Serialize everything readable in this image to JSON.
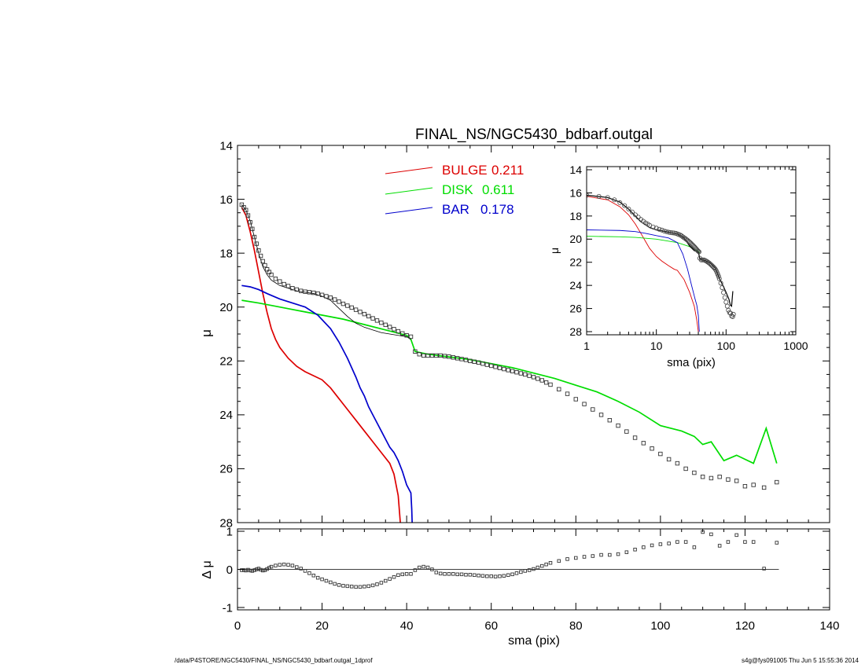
{
  "footer": {
    "left": "/data/P4STORE/NGC5430/FINAL_NS/NGC5430_bdbarf.outgal_1dprof",
    "right": "s4g@fys091005  Thu Jun  5 15:55:36 2014"
  },
  "chart_data": [
    {
      "id": "main",
      "type": "line",
      "title": "FINAL_NS/NGC5430_bdbarf.outgal",
      "ylabel": "μ",
      "xlim": [
        0,
        140
      ],
      "ylim": [
        28,
        14
      ],
      "y_inverted": true,
      "xticks": [
        0,
        20,
        40,
        60,
        80,
        100,
        120,
        140
      ],
      "yticks": [
        14,
        16,
        18,
        20,
        22,
        24,
        26,
        28
      ],
      "legend": {
        "placement": "top-center",
        "entries": [
          {
            "label": "BULGE",
            "value": "0.211",
            "color": "#dd0000"
          },
          {
            "label": "DISK",
            "value": "0.611",
            "color": "#00dd00"
          },
          {
            "label": "BAR",
            "value": "0.178",
            "color": "#0000cc"
          }
        ]
      },
      "series": [
        {
          "key": "bulge",
          "color": "#dd0000",
          "x": [
            1,
            2,
            3,
            4,
            5,
            6,
            7,
            8,
            9,
            10,
            12,
            14,
            16,
            18,
            20,
            22,
            24,
            26,
            28,
            30,
            32,
            34,
            36,
            37,
            38,
            38.5
          ],
          "y": [
            16.3,
            16.6,
            17.2,
            17.9,
            18.7,
            19.5,
            20.2,
            20.8,
            21.2,
            21.5,
            21.9,
            22.2,
            22.4,
            22.55,
            22.7,
            23.0,
            23.4,
            23.8,
            24.2,
            24.6,
            25.0,
            25.4,
            25.8,
            26.2,
            27.0,
            28.0
          ]
        },
        {
          "key": "disk",
          "color": "#00dd00",
          "x": [
            1,
            5,
            10,
            15,
            20,
            25,
            30,
            35,
            40,
            41,
            42,
            45,
            50,
            55,
            60,
            65,
            70,
            75,
            80,
            85,
            90,
            95,
            100,
            105,
            108,
            110,
            112,
            115,
            118,
            122,
            125,
            127.5
          ],
          "y": [
            19.75,
            19.85,
            20.0,
            20.15,
            20.3,
            20.45,
            20.65,
            20.85,
            21.05,
            21.2,
            21.65,
            21.75,
            21.85,
            21.95,
            22.1,
            22.25,
            22.45,
            22.65,
            22.9,
            23.15,
            23.5,
            23.9,
            24.4,
            24.6,
            24.8,
            25.1,
            25.0,
            25.7,
            25.5,
            25.8,
            24.5,
            25.8
          ]
        },
        {
          "key": "bar",
          "color": "#0000cc",
          "x": [
            1,
            3,
            5,
            7,
            10,
            13,
            16,
            19,
            22,
            24,
            26,
            28,
            29,
            30,
            31,
            32,
            33,
            34,
            35,
            36,
            37,
            38,
            39,
            40,
            41,
            41.2,
            41.3
          ],
          "y": [
            19.2,
            19.25,
            19.35,
            19.5,
            19.7,
            19.85,
            20.0,
            20.3,
            20.8,
            21.3,
            21.9,
            22.6,
            23.0,
            23.3,
            23.7,
            24.0,
            24.3,
            24.6,
            24.9,
            25.2,
            25.4,
            25.7,
            26.1,
            26.6,
            26.9,
            27.5,
            28.0
          ]
        },
        {
          "key": "model",
          "color": "#000000",
          "x": [
            1,
            2,
            3,
            4,
            5,
            6,
            7,
            8,
            9,
            10,
            12,
            14,
            16,
            18,
            20,
            22,
            24,
            26,
            28,
            30,
            32,
            34,
            36,
            38,
            40,
            41
          ],
          "y": [
            16.2,
            16.4,
            16.8,
            17.4,
            18.0,
            18.5,
            18.8,
            19.0,
            19.1,
            19.2,
            19.3,
            19.4,
            19.45,
            19.5,
            19.6,
            19.75,
            20.05,
            20.35,
            20.6,
            20.75,
            20.85,
            20.95,
            21.0,
            21.05,
            21.1,
            21.2
          ]
        }
      ],
      "observed": {
        "x": [
          1,
          1.5,
          2,
          2.5,
          3,
          3.5,
          4,
          4.5,
          5,
          5.5,
          6,
          6.5,
          7,
          7.5,
          8,
          9,
          10,
          11,
          12,
          13,
          14,
          15,
          16,
          17,
          18,
          19,
          20,
          21,
          22,
          23,
          24,
          25,
          26,
          27,
          28,
          29,
          30,
          31,
          32,
          33,
          34,
          35,
          36,
          37,
          38,
          39,
          40,
          41,
          42,
          43,
          44,
          45,
          46,
          47,
          48,
          49,
          50,
          51,
          52,
          53,
          54,
          55,
          56,
          57,
          58,
          59,
          60,
          61,
          62,
          63,
          64,
          65,
          66,
          67,
          68,
          69,
          70,
          71,
          72,
          73,
          74,
          76,
          78,
          80,
          82,
          84,
          86,
          88,
          90,
          92,
          94,
          96,
          98,
          100,
          102,
          104,
          106,
          108,
          110,
          112,
          114,
          116,
          118,
          120,
          122,
          124.5,
          127.5
        ],
        "y": [
          16.2,
          16.3,
          16.4,
          16.6,
          16.85,
          17.1,
          17.4,
          17.65,
          17.9,
          18.1,
          18.3,
          18.45,
          18.6,
          18.7,
          18.8,
          18.95,
          19.05,
          19.15,
          19.22,
          19.3,
          19.35,
          19.4,
          19.43,
          19.45,
          19.47,
          19.5,
          19.55,
          19.6,
          19.65,
          19.72,
          19.8,
          19.88,
          19.95,
          20.02,
          20.1,
          20.18,
          20.26,
          20.34,
          20.42,
          20.5,
          20.58,
          20.66,
          20.74,
          20.82,
          20.9,
          20.98,
          21.05,
          21.1,
          21.65,
          21.75,
          21.8,
          21.8,
          21.8,
          21.8,
          21.8,
          21.82,
          21.84,
          21.87,
          21.9,
          21.93,
          21.96,
          22.0,
          22.03,
          22.06,
          22.1,
          22.14,
          22.18,
          22.22,
          22.26,
          22.3,
          22.34,
          22.38,
          22.42,
          22.46,
          22.5,
          22.55,
          22.6,
          22.66,
          22.72,
          22.8,
          22.88,
          23.05,
          23.22,
          23.42,
          23.6,
          23.8,
          24.0,
          24.2,
          24.4,
          24.62,
          24.85,
          25.05,
          25.25,
          25.45,
          25.65,
          25.8,
          26.0,
          26.15,
          26.3,
          26.35,
          26.3,
          26.4,
          26.45,
          26.65,
          26.6,
          26.7,
          26.5
        ]
      }
    },
    {
      "id": "residual",
      "type": "scatter",
      "ylabel": "Δ μ",
      "xlabel": "sma (pix)",
      "xlim": [
        0,
        140
      ],
      "ylim": [
        -1,
        1
      ],
      "xticks": [
        0,
        20,
        40,
        60,
        80,
        100,
        120,
        140
      ],
      "yticks": [
        -1,
        0,
        1
      ],
      "zero_line_x": [
        0,
        128
      ],
      "x": [
        1,
        1.5,
        2,
        2.5,
        3,
        3.5,
        4,
        4.5,
        5,
        5.5,
        6,
        6.5,
        7,
        7.5,
        8,
        9,
        10,
        11,
        12,
        13,
        14,
        15,
        16,
        17,
        18,
        19,
        20,
        21,
        22,
        23,
        24,
        25,
        26,
        27,
        28,
        29,
        30,
        31,
        32,
        33,
        34,
        35,
        36,
        37,
        38,
        39,
        40,
        41,
        42,
        43,
        44,
        45,
        46,
        47,
        48,
        49,
        50,
        51,
        52,
        53,
        54,
        55,
        56,
        57,
        58,
        59,
        60,
        61,
        62,
        63,
        64,
        65,
        66,
        67,
        68,
        69,
        70,
        71,
        72,
        73,
        74,
        76,
        78,
        80,
        82,
        84,
        86,
        88,
        90,
        92,
        94,
        96,
        98,
        100,
        102,
        104,
        106,
        108,
        110,
        112,
        114,
        116,
        118,
        120,
        122,
        124.5,
        127.5
      ],
      "y": [
        -0.02,
        -0.02,
        -0.03,
        -0.01,
        -0.03,
        -0.04,
        -0.02,
        0.0,
        0.02,
        -0.01,
        -0.03,
        -0.02,
        0.01,
        0.04,
        0.07,
        0.1,
        0.12,
        0.13,
        0.12,
        0.1,
        0.06,
        0.02,
        -0.04,
        -0.1,
        -0.16,
        -0.22,
        -0.26,
        -0.3,
        -0.34,
        -0.38,
        -0.41,
        -0.43,
        -0.44,
        -0.45,
        -0.46,
        -0.46,
        -0.45,
        -0.44,
        -0.42,
        -0.39,
        -0.35,
        -0.3,
        -0.25,
        -0.2,
        -0.15,
        -0.13,
        -0.12,
        -0.12,
        -0.02,
        0.05,
        0.07,
        0.05,
        0.0,
        -0.08,
        -0.11,
        -0.12,
        -0.12,
        -0.12,
        -0.13,
        -0.13,
        -0.14,
        -0.14,
        -0.15,
        -0.16,
        -0.17,
        -0.18,
        -0.18,
        -0.19,
        -0.18,
        -0.17,
        -0.15,
        -0.13,
        -0.1,
        -0.07,
        -0.04,
        -0.02,
        0.01,
        0.05,
        0.09,
        0.13,
        0.17,
        0.22,
        0.27,
        0.3,
        0.33,
        0.35,
        0.38,
        0.38,
        0.4,
        0.45,
        0.52,
        0.58,
        0.63,
        0.66,
        0.68,
        0.72,
        0.72,
        0.58,
        0.98,
        0.92,
        0.62,
        0.72,
        0.9,
        0.72,
        0.72,
        0.02,
        0.7
      ]
    },
    {
      "id": "inset",
      "type": "line",
      "ylabel": "μ",
      "xlabel": "sma (pix)",
      "x_scale": "log",
      "xlim": [
        1,
        1000
      ],
      "ylim": [
        28,
        14
      ],
      "y_inverted": true,
      "xticks": [
        1,
        10,
        100,
        1000
      ],
      "yticks": [
        14,
        16,
        18,
        20,
        22,
        24,
        26,
        28
      ],
      "series": [
        {
          "key": "bulge",
          "color": "#dd0000",
          "x": [
            1,
            2,
            3,
            4,
            5,
            6,
            7,
            8,
            10,
            12,
            15,
            18,
            20,
            25,
            30,
            35,
            38,
            40
          ],
          "y": [
            16.3,
            16.6,
            17.2,
            17.9,
            18.7,
            19.5,
            20.2,
            20.8,
            21.5,
            21.9,
            22.3,
            22.6,
            22.7,
            23.5,
            24.6,
            25.8,
            27.0,
            28.0
          ]
        },
        {
          "key": "disk",
          "color": "#00dd00",
          "x": [
            1,
            3,
            5,
            10,
            20,
            30,
            40,
            42
          ],
          "y": [
            19.75,
            19.8,
            19.85,
            20.0,
            20.3,
            20.65,
            21.05,
            21.2
          ]
        },
        {
          "key": "bar",
          "color": "#0000cc",
          "x": [
            1,
            3,
            5,
            7,
            10,
            15,
            20,
            24,
            28,
            32,
            36,
            38,
            40,
            41.3
          ],
          "y": [
            19.2,
            19.25,
            19.35,
            19.5,
            19.7,
            19.9,
            20.3,
            21.3,
            22.6,
            24.0,
            25.2,
            25.7,
            26.6,
            28.0
          ]
        },
        {
          "key": "model",
          "color": "#000000",
          "x": [
            1,
            2,
            3,
            4,
            5,
            6,
            8,
            10,
            15,
            20,
            25,
            30,
            35,
            40,
            42,
            45,
            50,
            60,
            70,
            80,
            90,
            100,
            110,
            115,
            120,
            125
          ],
          "y": [
            16.2,
            16.4,
            16.8,
            17.4,
            18.0,
            18.5,
            19.0,
            19.2,
            19.4,
            19.55,
            19.9,
            20.6,
            21.0,
            21.1,
            21.7,
            21.8,
            21.85,
            22.1,
            22.5,
            23.4,
            24.0,
            24.6,
            25.2,
            25.7,
            25.8,
            24.5
          ]
        }
      ],
      "observed": {
        "x": [
          1,
          1.5,
          2,
          2.5,
          3,
          3.5,
          4,
          4.5,
          5,
          5.5,
          6,
          6.5,
          7,
          7.5,
          8,
          9,
          10,
          11,
          12,
          13,
          14,
          15,
          16,
          17,
          18,
          19,
          20,
          21,
          22,
          23,
          24,
          25,
          26,
          27,
          28,
          29,
          30,
          31,
          32,
          33,
          34,
          35,
          36,
          37,
          38,
          39,
          40,
          41,
          42,
          44,
          46,
          48,
          50,
          52,
          54,
          56,
          58,
          60,
          62,
          64,
          66,
          68,
          70,
          72,
          74,
          76,
          78,
          80,
          84,
          88,
          92,
          96,
          100,
          104,
          108,
          112,
          116,
          120,
          124.5,
          127.5
        ],
        "y": [
          16.2,
          16.3,
          16.4,
          16.6,
          16.85,
          17.1,
          17.4,
          17.65,
          17.9,
          18.1,
          18.3,
          18.45,
          18.6,
          18.7,
          18.8,
          18.95,
          19.05,
          19.15,
          19.22,
          19.3,
          19.35,
          19.4,
          19.43,
          19.45,
          19.47,
          19.5,
          19.55,
          19.6,
          19.65,
          19.72,
          19.8,
          19.88,
          19.95,
          20.02,
          20.1,
          20.18,
          20.26,
          20.34,
          20.42,
          20.5,
          20.58,
          20.66,
          20.74,
          20.82,
          20.9,
          20.98,
          21.05,
          21.1,
          21.65,
          21.8,
          21.8,
          21.8,
          21.84,
          21.9,
          21.96,
          22.03,
          22.1,
          22.18,
          22.26,
          22.34,
          22.42,
          22.5,
          22.6,
          22.72,
          22.88,
          23.05,
          23.22,
          23.42,
          23.8,
          24.2,
          24.62,
          25.05,
          25.45,
          25.8,
          26.15,
          26.35,
          26.4,
          26.65,
          26.7,
          26.5
        ]
      }
    }
  ]
}
